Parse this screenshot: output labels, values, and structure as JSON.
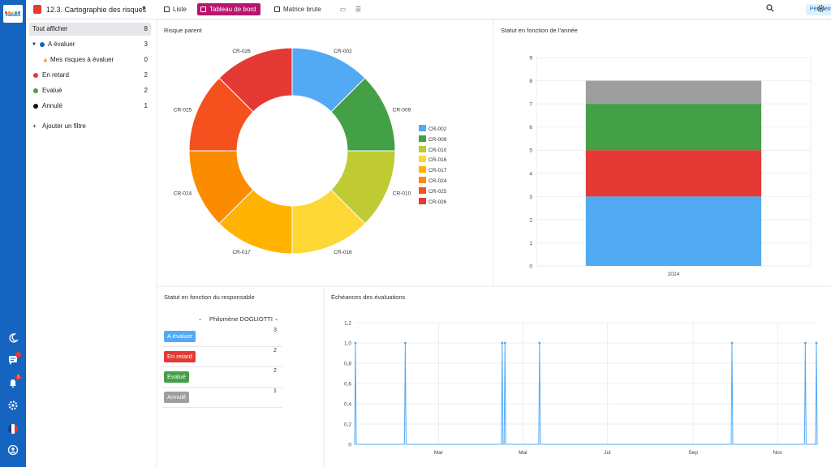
{
  "app": {
    "logo_text": "values",
    "title": "12.3. Cartographie des risques"
  },
  "colors": {
    "rail": "#1565c0",
    "active_tab": "#b5176d",
    "blue": "#52aaf5",
    "green": "#43a047",
    "red": "#e53935",
    "grey": "#9e9e9e",
    "black": "#111111"
  },
  "tabs": [
    {
      "label": "Liste",
      "icon": "list-icon"
    },
    {
      "label": "Tableau de bord",
      "icon": "dashboard-icon",
      "active": true
    },
    {
      "label": "Matrice brute",
      "icon": "grid-icon"
    }
  ],
  "toolbar": {
    "perimetre_label": "Périmètre",
    "icons": [
      "presentation-icon",
      "filter-settings-icon",
      "search-icon",
      "settings-icon"
    ]
  },
  "rail": {
    "icons": [
      "moon-icon",
      "chat-icon",
      "bell-icon",
      "gear-icon",
      "french-flag-icon",
      "user-circle-icon"
    ],
    "notifications_badge": "1"
  },
  "filters": {
    "items": [
      {
        "label": "Tout afficher",
        "count": "8"
      },
      {
        "label": "A évaluer",
        "count": "3",
        "color": "#1565c0"
      },
      {
        "label": "Mes risques à évaluer",
        "count": "0"
      },
      {
        "label": "En retard",
        "count": "2",
        "color": "#e53935"
      },
      {
        "label": "Evalué",
        "count": "2",
        "color": "#43a047"
      },
      {
        "label": "Annulé",
        "count": "1",
        "color": "#111111"
      }
    ],
    "add_label": "Ajouter un filtre"
  },
  "panels": {
    "donut_title": "Risque parent",
    "stack_title": "Statut en fonction de l'année",
    "resp_title": "Statut en fonction du responsable",
    "line_title": "Échéances des évaluations"
  },
  "responsible": {
    "name": "Philomène DOGLIOTTI",
    "rows": [
      {
        "status": "A évaluer",
        "count": "3",
        "color": "#52aaf5"
      },
      {
        "status": "En retard",
        "count": "2",
        "color": "#e53935"
      },
      {
        "status": "Evalué",
        "count": "2",
        "color": "#43a047"
      },
      {
        "status": "Annulé",
        "count": "1",
        "color": "#9e9e9e"
      }
    ]
  },
  "chart_data": [
    {
      "type": "pie",
      "title": "Risque parent",
      "labels": [
        "CR-002",
        "CR-009",
        "CR-010",
        "CR-016",
        "CR-017",
        "CR-024",
        "CR-025",
        "CR-026"
      ],
      "values": [
        1,
        1,
        1,
        1,
        1,
        1,
        1,
        1
      ],
      "colors": [
        "#52aaf5",
        "#43a047",
        "#c0ca33",
        "#fdd835",
        "#ffb300",
        "#fb8c00",
        "#f4511e",
        "#e53935"
      ],
      "legend": "right"
    },
    {
      "type": "bar",
      "stacked": true,
      "title": "Statut en fonction de l'année",
      "categories": [
        "2024"
      ],
      "series": [
        {
          "values": [
            3
          ],
          "color": "#52aaf5"
        },
        {
          "values": [
            2
          ],
          "color": "#e53935"
        },
        {
          "values": [
            2
          ],
          "color": "#43a047"
        },
        {
          "values": [
            1
          ],
          "color": "#9e9e9e"
        }
      ],
      "ylim": [
        0,
        9
      ],
      "yticks": [
        "0",
        "1",
        "2",
        "3",
        "4",
        "5",
        "6",
        "7",
        "8",
        "9"
      ],
      "grid": true
    },
    {
      "type": "line",
      "title": "Échéances des évaluations",
      "x": [
        "2024-01-01",
        "2024-02-06",
        "2024-04-16",
        "2024-04-18",
        "2024-05-13",
        "2024-09-29",
        "2024-11-21",
        "2024-11-29"
      ],
      "y": [
        1,
        1,
        1,
        1,
        1,
        1,
        1,
        1
      ],
      "x_range": [
        "2024-01-01",
        "2024-11-29"
      ],
      "xticks": [
        {
          "label": "Mar",
          "date": "2024-03-01"
        },
        {
          "label": "Mai",
          "date": "2024-05-01"
        },
        {
          "label": "Jul",
          "date": "2024-07-01"
        },
        {
          "label": "Sep",
          "date": "2024-09-01"
        },
        {
          "label": "Nov",
          "date": "2024-11-01"
        }
      ],
      "ylim": [
        0,
        1.2
      ],
      "yticks": [
        "0",
        "0,2",
        "0,4",
        "0,6",
        "0,8",
        "1,0",
        "1,2"
      ],
      "color": "#52aaf5",
      "grid": true
    }
  ]
}
